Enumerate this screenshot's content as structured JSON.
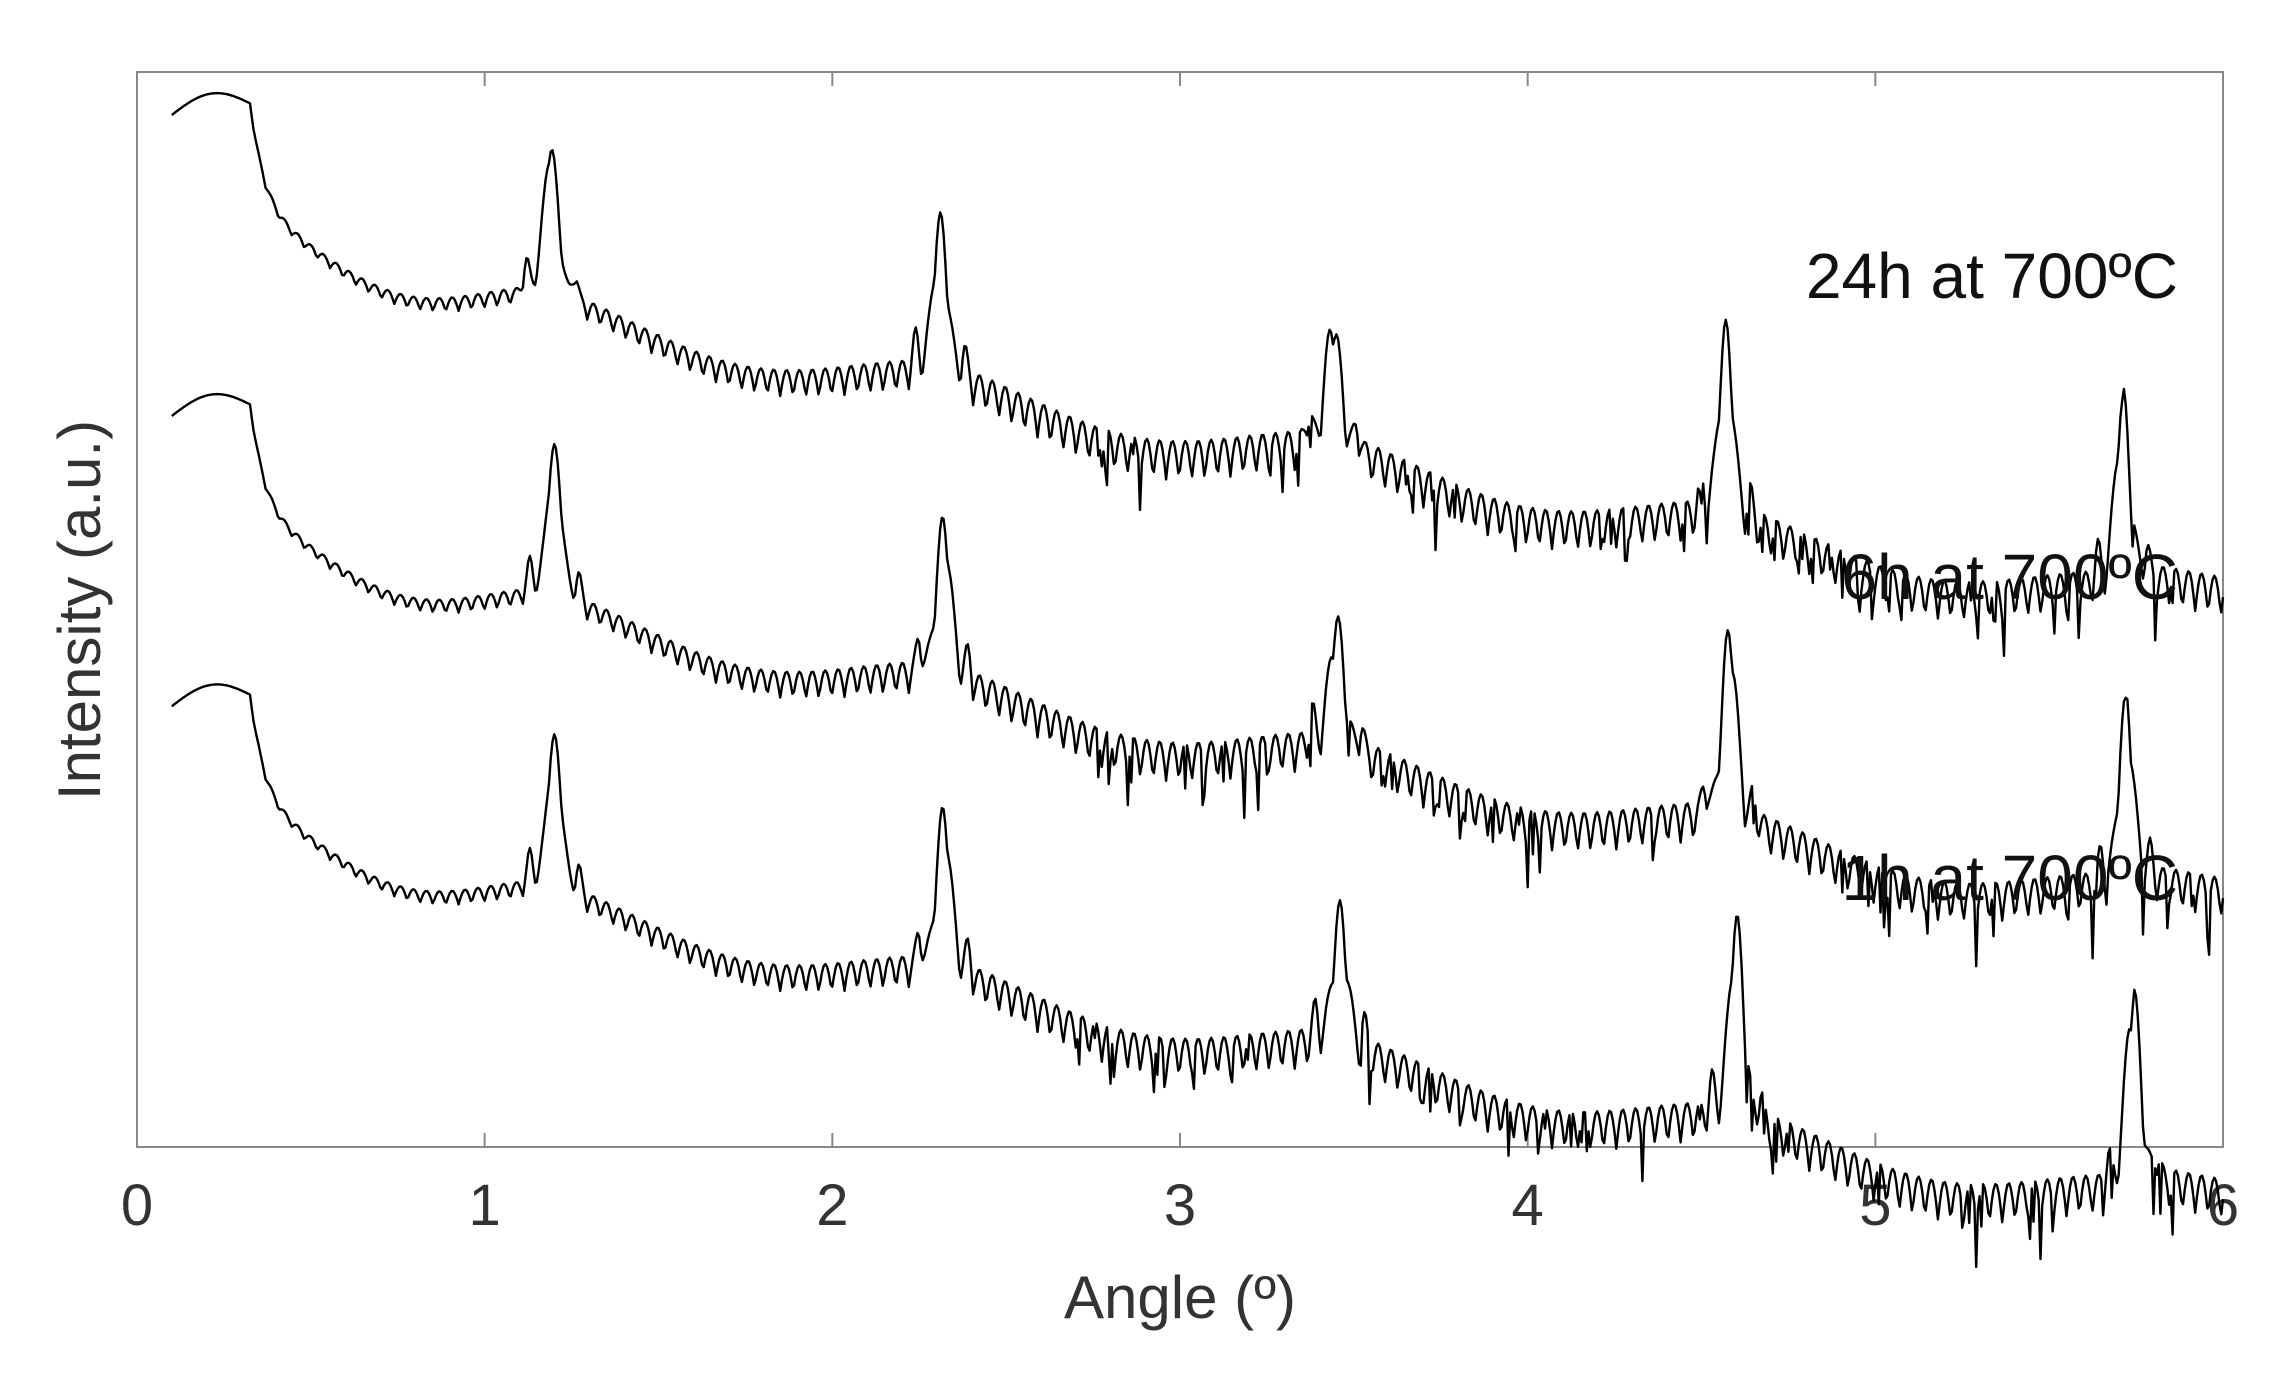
{
  "chart_data": {
    "type": "line",
    "title": "",
    "xlabel": "Angle (º)",
    "ylabel": "Intensity (a.u.)",
    "xlim": [
      0,
      6
    ],
    "xticks": [
      "0",
      "1",
      "2",
      "3",
      "4",
      "5",
      "6"
    ],
    "ylim": [
      0,
      1
    ],
    "yticks": [],
    "grid": false,
    "legend": "none",
    "line_color": "#000000",
    "axis_color": "#888888",
    "x_sampling": {
      "start": 0.1,
      "end": 6.0,
      "step": 0.005
    },
    "series": [
      {
        "name": "24h at 700ºC",
        "peak_positions": [
          1.19,
          2.31,
          3.44,
          4.57,
          5.71
        ],
        "peak_heights": [
          0.98,
          0.92,
          0.83,
          0.82,
          0.75
        ],
        "baseline_start": 0.96,
        "baseline_end": 0.62,
        "fringe_period": 0.037,
        "plateau_end": 0.33
      },
      {
        "name": "6h at 700ºC",
        "peak_positions": [
          1.2,
          2.32,
          3.45,
          4.58,
          5.72
        ],
        "peak_heights": [
          0.7,
          0.64,
          0.55,
          0.54,
          0.47
        ],
        "baseline_start": 0.68,
        "baseline_end": 0.34,
        "fringe_period": 0.037,
        "plateau_end": 0.33
      },
      {
        "name": "1h at 700ºC",
        "peak_positions": [
          1.2,
          2.32,
          3.46,
          4.6,
          5.74
        ],
        "peak_heights": [
          0.43,
          0.37,
          0.28,
          0.27,
          0.2
        ],
        "baseline_start": 0.41,
        "baseline_end": 0.06,
        "fringe_period": 0.037,
        "plateau_end": 0.33
      }
    ]
  }
}
